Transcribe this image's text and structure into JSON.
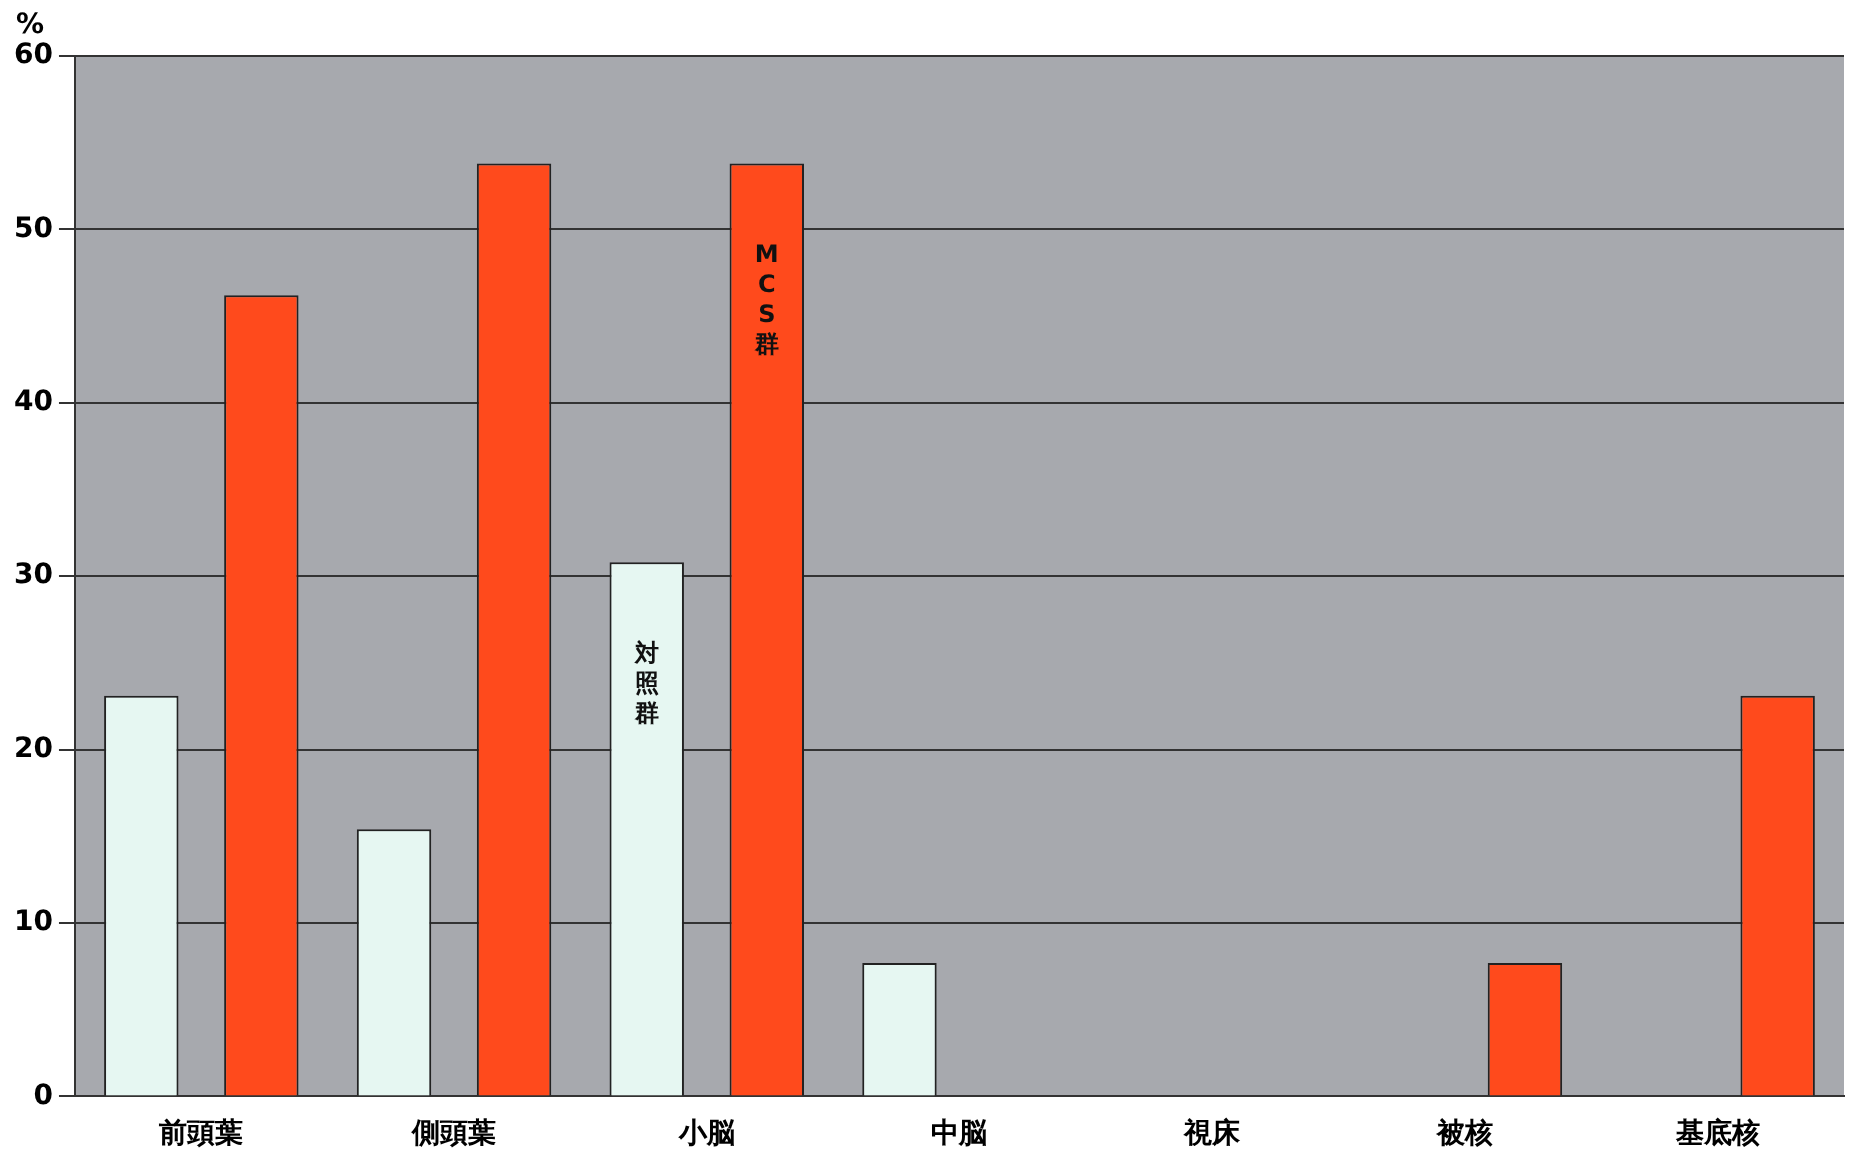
{
  "chart_data": {
    "type": "bar",
    "ylabel": "%",
    "categories": [
      "前頭葉",
      "側頭葉",
      "小脳",
      "中脳",
      "視床",
      "被核",
      "基底核"
    ],
    "series": [
      {
        "name": "対照群",
        "color": "#e6f7f2",
        "values": [
          23.1,
          15.4,
          30.8,
          7.7,
          0,
          0,
          0
        ]
      },
      {
        "name": "MCS群",
        "color": "#ff4a1c",
        "values": [
          46.2,
          53.8,
          53.8,
          0,
          0,
          7.7,
          23.1
        ]
      }
    ],
    "ylim": [
      0,
      60
    ],
    "yticks": [
      0,
      10,
      20,
      30,
      40,
      50,
      60
    ],
    "grid": "y",
    "legend": false
  }
}
